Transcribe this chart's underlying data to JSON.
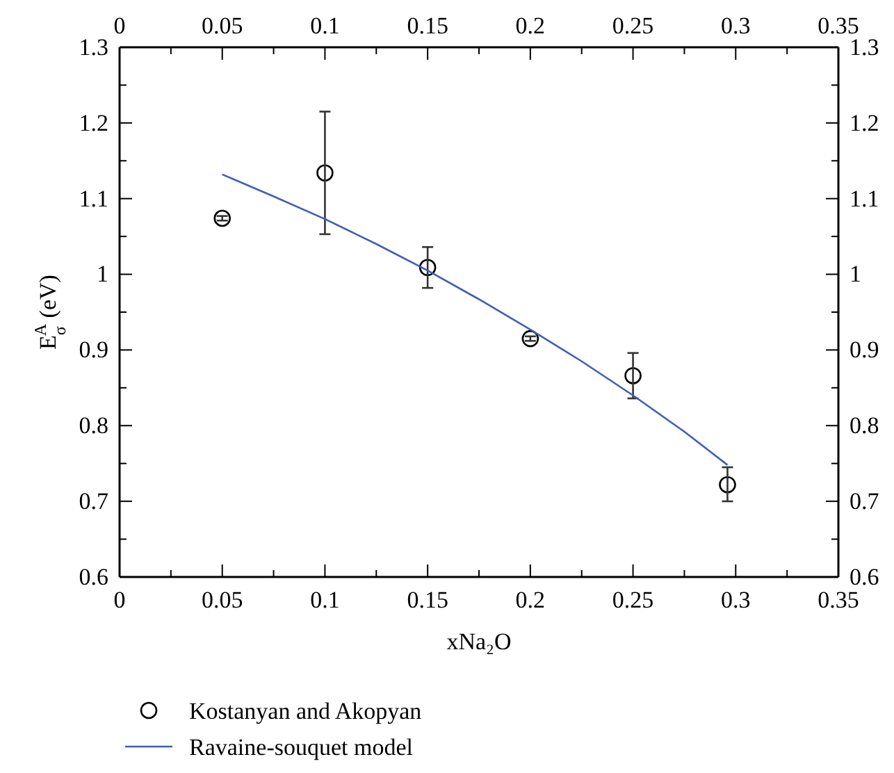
{
  "chart_data": {
    "type": "scatter",
    "xlabel": "xNa₂O",
    "ylabel": "E$_{σ}$$^{A}$ (eV)",
    "xlim": [
      0,
      0.35
    ],
    "ylim": [
      0.6,
      1.3
    ],
    "xticks": [
      0,
      {
        "value": 0.025,
        "label": null
      },
      0.05,
      {
        "value": 0.075,
        "label": null
      },
      0.1,
      {
        "value": 0.125,
        "label": null
      },
      0.15,
      {
        "value": 0.175,
        "label": null
      },
      0.2,
      {
        "value": 0.225,
        "label": null
      },
      0.25,
      {
        "value": 0.275,
        "label": null
      },
      0.3,
      {
        "value": 0.325,
        "label": null
      },
      0.35
    ],
    "x2lim": [
      0,
      0.35
    ],
    "x2ticks": [
      0,
      {
        "value": 0.025,
        "label": null
      },
      0.05,
      {
        "value": 0.075,
        "label": null
      },
      0.1,
      {
        "value": 0.125,
        "label": null
      },
      0.15,
      {
        "value": 0.175,
        "label": null
      },
      0.2,
      {
        "value": 0.225,
        "label": null
      },
      0.25,
      {
        "value": 0.275,
        "label": null
      },
      0.3,
      {
        "value": 0.325,
        "label": null
      },
      0.35
    ],
    "yticks": [
      0.6,
      {
        "value": 0.65,
        "label": null
      },
      0.7,
      {
        "value": 0.75,
        "label": null
      },
      0.8,
      {
        "value": 0.85,
        "label": null
      },
      0.9,
      {
        "value": 0.95,
        "label": null
      },
      1,
      {
        "value": 1.05,
        "label": null
      },
      1.1,
      {
        "value": 1.15,
        "label": null
      },
      1.2,
      {
        "value": 1.25,
        "label": null
      },
      1.3
    ],
    "y2lim": [
      0.6,
      1.3
    ],
    "y2ticks": [
      0.6,
      {
        "value": 0.65,
        "label": null
      },
      0.7,
      {
        "value": 0.75,
        "label": null
      },
      0.8,
      {
        "value": 0.85,
        "label": null
      },
      0.9,
      {
        "value": 0.95,
        "label": null
      },
      1,
      {
        "value": 1.05,
        "label": null
      },
      1.1,
      {
        "value": 1.15,
        "label": null
      },
      1.2,
      {
        "value": 1.25,
        "label": null
      },
      1.3
    ],
    "legend": "bottom",
    "grid": false,
    "marker": "circle",
    "series": [
      {
        "name": "Kostanyan and Akopyan",
        "color": "#000000",
        "x": [
          0.05,
          0.1,
          0.15,
          0.2,
          0.25,
          0.296
        ],
        "values": [
          1.074,
          1.134,
          1.009,
          0.915,
          0.866,
          0.722
        ],
        "errors": [
          0.003,
          [
            1.053,
            1.215
          ],
          [
            0.982,
            1.036
          ],
          0.003,
          [
            0.836,
            0.896
          ],
          [
            0.7,
            0.745
          ]
        ]
      },
      {
        "name": "Ravaine-souquet model",
        "type": "line",
        "color": "#3f5fb5",
        "marker": "none",
        "line_style": "solid",
        "x": [
          0.05,
          0.075,
          0.1,
          0.125,
          0.15,
          0.175,
          0.2,
          0.225,
          0.25,
          0.275,
          0.296
        ],
        "values": [
          1.132,
          1.103,
          1.073,
          1.04,
          1.005,
          0.967,
          0.927,
          0.885,
          0.84,
          0.792,
          0.748
        ]
      }
    ]
  }
}
